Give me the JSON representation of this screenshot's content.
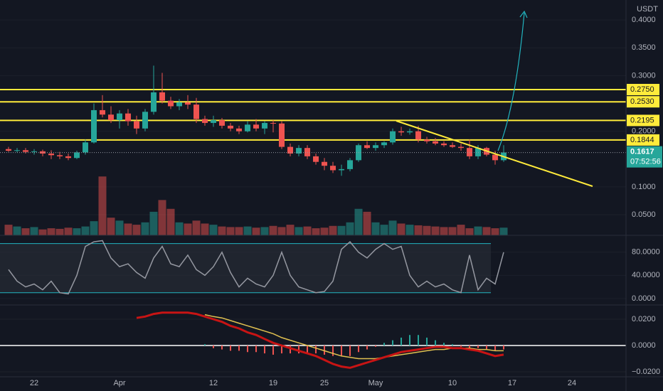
{
  "chart_data": {
    "type": "candlestick",
    "currency": "USDT",
    "up_color": "#26a69a",
    "down_color": "#ef5350",
    "grid": true,
    "x": [
      78,
      79,
      80,
      81,
      82,
      83,
      84,
      85,
      86,
      87,
      88,
      89,
      90,
      91,
      92,
      93,
      94,
      95,
      96,
      97,
      98,
      99,
      100,
      101,
      102,
      103,
      104,
      105,
      106,
      107,
      108,
      109,
      110,
      111,
      112,
      113,
      114,
      115,
      116,
      117,
      118,
      119,
      120,
      121,
      122,
      123,
      124,
      125,
      126,
      127,
      128,
      129,
      130,
      131,
      132,
      133,
      134,
      135,
      136
    ],
    "xlim": [
      77,
      150.33
    ],
    "xticks": [
      {
        "value": 81,
        "label": "22"
      },
      {
        "value": 91,
        "label": "Apr"
      },
      {
        "value": 102,
        "label": "12"
      },
      {
        "value": 109,
        "label": "19"
      },
      {
        "value": 115,
        "label": "25"
      },
      {
        "value": 121,
        "label": "May"
      },
      {
        "value": 130,
        "label": "10"
      },
      {
        "value": 137,
        "label": "17"
      },
      {
        "value": 144,
        "label": "24"
      }
    ],
    "open": [
      0.168,
      0.165,
      0.166,
      0.163,
      0.164,
      0.16,
      0.157,
      0.155,
      0.152,
      0.162,
      0.18,
      0.238,
      0.23,
      0.22,
      0.232,
      0.218,
      0.205,
      0.235,
      0.27,
      0.255,
      0.245,
      0.252,
      0.248,
      0.222,
      0.215,
      0.22,
      0.21,
      0.205,
      0.2,
      0.212,
      0.205,
      0.215,
      0.214,
      0.172,
      0.16,
      0.17,
      0.155,
      0.145,
      0.138,
      0.13,
      0.132,
      0.148,
      0.175,
      0.17,
      0.175,
      0.18,
      0.2,
      0.198,
      0.2,
      0.185,
      0.182,
      0.178,
      0.175,
      0.172,
      0.17,
      0.155,
      0.17,
      0.158,
      0.148
    ],
    "high": [
      0.172,
      0.17,
      0.17,
      0.168,
      0.167,
      0.166,
      0.163,
      0.16,
      0.165,
      0.185,
      0.25,
      0.265,
      0.245,
      0.238,
      0.24,
      0.228,
      0.24,
      0.318,
      0.305,
      0.262,
      0.258,
      0.265,
      0.26,
      0.228,
      0.228,
      0.224,
      0.215,
      0.21,
      0.218,
      0.222,
      0.218,
      0.22,
      0.218,
      0.178,
      0.175,
      0.175,
      0.16,
      0.152,
      0.145,
      0.14,
      0.152,
      0.178,
      0.182,
      0.18,
      0.182,
      0.205,
      0.208,
      0.205,
      0.21,
      0.19,
      0.188,
      0.182,
      0.18,
      0.178,
      0.185,
      0.175,
      0.172,
      0.165,
      0.175
    ],
    "low": [
      0.163,
      0.162,
      0.16,
      0.158,
      0.155,
      0.15,
      0.15,
      0.148,
      0.15,
      0.158,
      0.178,
      0.225,
      0.215,
      0.205,
      0.21,
      0.195,
      0.2,
      0.23,
      0.25,
      0.24,
      0.238,
      0.24,
      0.215,
      0.21,
      0.208,
      0.205,
      0.2,
      0.195,
      0.198,
      0.2,
      0.195,
      0.198,
      0.168,
      0.155,
      0.155,
      0.15,
      0.14,
      0.13,
      0.125,
      0.12,
      0.128,
      0.145,
      0.168,
      0.165,
      0.17,
      0.176,
      0.192,
      0.194,
      0.18,
      0.178,
      0.175,
      0.172,
      0.17,
      0.165,
      0.15,
      0.15,
      0.155,
      0.14,
      0.145
    ],
    "close": [
      0.165,
      0.166,
      0.163,
      0.164,
      0.16,
      0.157,
      0.155,
      0.152,
      0.162,
      0.18,
      0.238,
      0.23,
      0.22,
      0.232,
      0.218,
      0.205,
      0.235,
      0.27,
      0.255,
      0.245,
      0.252,
      0.248,
      0.222,
      0.215,
      0.22,
      0.21,
      0.205,
      0.2,
      0.212,
      0.205,
      0.215,
      0.214,
      0.172,
      0.16,
      0.17,
      0.155,
      0.145,
      0.138,
      0.13,
      0.132,
      0.148,
      0.175,
      0.17,
      0.175,
      0.18,
      0.2,
      0.198,
      0.2,
      0.185,
      0.182,
      0.178,
      0.175,
      0.172,
      0.17,
      0.155,
      0.17,
      0.158,
      0.148,
      0.1617
    ],
    "ylim": [
      0.013,
      0.436
    ],
    "yticks": [
      {
        "value": 0.4,
        "label": "0.4000"
      },
      {
        "value": 0.35,
        "label": "0.3500"
      },
      {
        "value": 0.3,
        "label": "0.3000"
      },
      {
        "value": 0.2,
        "label": "0.2000"
      },
      {
        "value": 0.1,
        "label": "0.1000"
      },
      {
        "value": 0.05,
        "label": "0.0500"
      }
    ],
    "levels": [
      {
        "value": 0.275,
        "label": "0.2750"
      },
      {
        "value": 0.253,
        "label": "0.2530"
      },
      {
        "value": 0.2195,
        "label": "0.2195"
      },
      {
        "value": 0.1844,
        "label": "0.1844"
      }
    ],
    "level_color": "#ffeb3b",
    "last_price": {
      "value": 0.1617,
      "label": "0.1617"
    },
    "countdown": "07:52:56",
    "volume": [
      18,
      15,
      12,
      14,
      10,
      12,
      11,
      13,
      12,
      15,
      24,
      100,
      30,
      25,
      20,
      18,
      22,
      40,
      60,
      45,
      22,
      20,
      25,
      20,
      18,
      15,
      14,
      14,
      15,
      13,
      14,
      16,
      14,
      18,
      14,
      15,
      12,
      13,
      16,
      16,
      22,
      45,
      40,
      22,
      18,
      25,
      20,
      18,
      17,
      16,
      15,
      14,
      14,
      18,
      12,
      15,
      14,
      12,
      13
    ],
    "volume_ylim": [
      0,
      400
    ],
    "oscillator": {
      "values": [
        50,
        30,
        20,
        25,
        15,
        30,
        10,
        8,
        40,
        90,
        98,
        100,
        70,
        55,
        60,
        45,
        35,
        70,
        90,
        60,
        55,
        75,
        50,
        40,
        55,
        80,
        45,
        20,
        35,
        25,
        20,
        40,
        80,
        40,
        20,
        15,
        10,
        12,
        30,
        85,
        98,
        80,
        70,
        85,
        95,
        85,
        90,
        40,
        20,
        30,
        20,
        25,
        15,
        10,
        75,
        15,
        35,
        25,
        80
      ],
      "color": "#9598a1",
      "bands": [
        10,
        95
      ],
      "band_color": "#22b5c0",
      "ylim": [
        -10,
        108
      ],
      "yticks": [
        {
          "value": 80,
          "label": "80.0000"
        },
        {
          "value": 40,
          "label": "40.0000"
        },
        {
          "value": 0,
          "label": "0.0000"
        }
      ]
    },
    "macd": {
      "macd": [
        null,
        null,
        null,
        null,
        null,
        null,
        null,
        null,
        null,
        null,
        null,
        null,
        null,
        null,
        null,
        0.021,
        0.022,
        0.024,
        0.025,
        0.025,
        0.025,
        0.025,
        0.024,
        0.022,
        0.02,
        0.018,
        0.015,
        0.013,
        0.01,
        0.008,
        0.005,
        0.002,
        0.0,
        -0.002,
        -0.004,
        -0.006,
        -0.008,
        -0.011,
        -0.014,
        -0.016,
        -0.017,
        -0.015,
        -0.013,
        -0.011,
        -0.009,
        -0.007,
        -0.005,
        -0.004,
        -0.003,
        -0.002,
        -0.001,
        -0.001,
        -0.002,
        -0.002,
        -0.003,
        -0.004,
        -0.006,
        -0.008,
        -0.007
      ],
      "macd_color": "#c81414",
      "signal": [
        null,
        null,
        null,
        null,
        null,
        null,
        null,
        null,
        null,
        null,
        null,
        null,
        null,
        null,
        null,
        null,
        null,
        null,
        null,
        null,
        null,
        null,
        null,
        0.0235,
        0.022,
        0.021,
        0.019,
        0.017,
        0.015,
        0.013,
        0.011,
        0.009,
        0.006,
        0.004,
        0.002,
        0.0,
        -0.002,
        -0.004,
        -0.006,
        -0.008,
        -0.009,
        -0.01,
        -0.01,
        -0.01,
        -0.009,
        -0.008,
        -0.007,
        -0.006,
        -0.005,
        -0.004,
        -0.003,
        -0.003,
        -0.002,
        -0.002,
        -0.002,
        -0.003,
        -0.003,
        -0.004,
        -0.004
      ],
      "signal_color": "#e0c050",
      "histogram": [
        null,
        null,
        null,
        null,
        null,
        null,
        null,
        null,
        null,
        null,
        null,
        null,
        null,
        null,
        null,
        null,
        null,
        null,
        null,
        null,
        null,
        null,
        null,
        0.001,
        -0.002,
        -0.003,
        -0.004,
        -0.004,
        -0.005,
        -0.005,
        -0.006,
        -0.007,
        -0.006,
        -0.006,
        -0.006,
        -0.006,
        -0.006,
        -0.007,
        -0.008,
        -0.008,
        -0.008,
        -0.005,
        -0.003,
        -0.001,
        0.002,
        0.004,
        0.006,
        0.008,
        0.008,
        0.006,
        0.004,
        0.002,
        0.001,
        -0.001,
        -0.002,
        -0.002,
        -0.003,
        -0.004,
        -0.003
      ],
      "ylim": [
        -0.0238,
        0.0303
      ],
      "yticks": [
        {
          "value": 0.02,
          "label": "0.0200"
        },
        {
          "value": 0,
          "label": "0.0000"
        },
        {
          "value": -0.02,
          "label": "−0.0200"
        }
      ]
    }
  }
}
